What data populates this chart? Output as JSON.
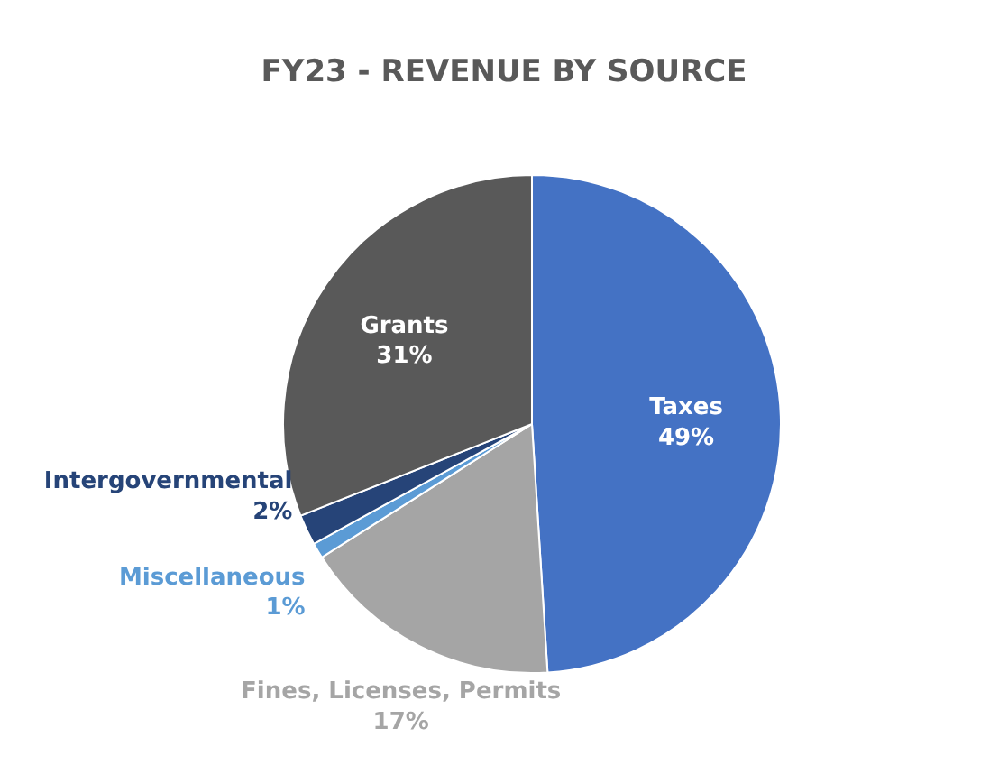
{
  "chart_data": {
    "type": "pie",
    "title": "FY23 - REVENUE BY SOURCE",
    "categories": [
      "Taxes",
      "Fines, Licenses, Permits",
      "Miscellaneous",
      "Intergovernmental",
      "Grants"
    ],
    "values": [
      49,
      17,
      1,
      2,
      31
    ],
    "colors": [
      "#4472c4",
      "#a5a5a5",
      "#5b9bd5",
      "#264478",
      "#595959"
    ],
    "value_labels": [
      "49%",
      "17%",
      "1%",
      "2%",
      "31%"
    ],
    "legend": false
  }
}
